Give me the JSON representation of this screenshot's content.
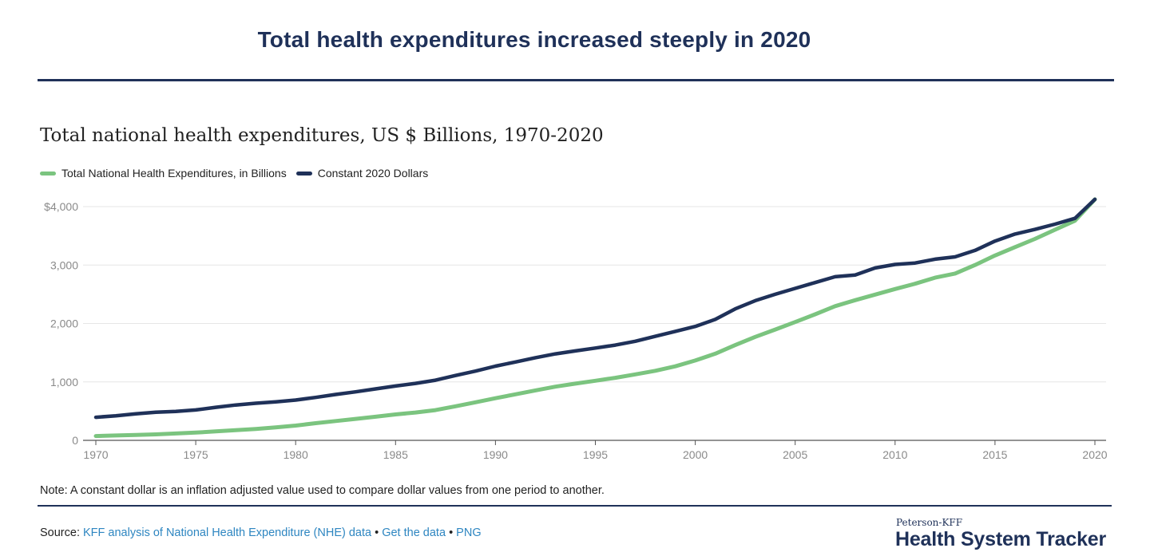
{
  "headline": "Total health expenditures increased steeply in 2020",
  "chart_data": {
    "type": "line",
    "title": "Total national health expenditures, US $ Billions, 1970-2020",
    "xlabel": "",
    "ylabel": "",
    "x": [
      1970,
      1971,
      1972,
      1973,
      1974,
      1975,
      1976,
      1977,
      1978,
      1979,
      1980,
      1981,
      1982,
      1983,
      1984,
      1985,
      1986,
      1987,
      1988,
      1989,
      1990,
      1991,
      1992,
      1993,
      1994,
      1995,
      1996,
      1997,
      1998,
      1999,
      2000,
      2001,
      2002,
      2003,
      2004,
      2005,
      2006,
      2007,
      2008,
      2009,
      2010,
      2011,
      2012,
      2013,
      2014,
      2015,
      2016,
      2017,
      2018,
      2019,
      2020
    ],
    "series": [
      {
        "name": "Total National Health Expenditures, in Billions",
        "color": "#7bc47f",
        "values": [
          74,
          83,
          93,
          103,
          117,
          133,
          153,
          174,
          195,
          221,
          253,
          294,
          331,
          367,
          404,
          444,
          476,
          518,
          583,
          651,
          721,
          788,
          855,
          919,
          970,
          1020,
          1070,
          1129,
          1191,
          1267,
          1366,
          1482,
          1630,
          1771,
          1896,
          2024,
          2157,
          2296,
          2399,
          2494,
          2590,
          2680,
          2784,
          2855,
          3001,
          3163,
          3306,
          3447,
          3604,
          3758,
          4124
        ]
      },
      {
        "name": "Constant 2020 Dollars",
        "color": "#1f3159",
        "values": [
          395,
          420,
          455,
          480,
          495,
          520,
          565,
          605,
          635,
          660,
          690,
          735,
          785,
          830,
          880,
          930,
          975,
          1030,
          1110,
          1185,
          1270,
          1340,
          1415,
          1480,
          1530,
          1580,
          1630,
          1695,
          1780,
          1865,
          1950,
          2070,
          2250,
          2390,
          2500,
          2600,
          2700,
          2800,
          2830,
          2950,
          3010,
          3035,
          3100,
          3140,
          3250,
          3410,
          3530,
          3610,
          3700,
          3800,
          4124
        ]
      }
    ],
    "y_ticks": [
      0,
      1000,
      2000,
      3000,
      4000
    ],
    "y_tick_labels": [
      "0",
      "1,000",
      "2,000",
      "3,000",
      "$4,000"
    ],
    "x_ticks": [
      1970,
      1975,
      1980,
      1985,
      1990,
      1995,
      2000,
      2005,
      2010,
      2015,
      2020
    ],
    "ylim": [
      0,
      4300
    ],
    "xlim": [
      1970,
      2020
    ],
    "grid": true,
    "legend_position": "top-left"
  },
  "note": "Note: A constant dollar is an inflation adjusted value used to compare dollar values from one period to another.",
  "source": {
    "label": "Source:",
    "link_text": "KFF analysis of National Health Expenditure (NHE) data",
    "sep": "•",
    "get_data": "Get the data",
    "png": "PNG"
  },
  "brand": {
    "small": "Peterson-KFF",
    "big": "Health System Tracker"
  }
}
